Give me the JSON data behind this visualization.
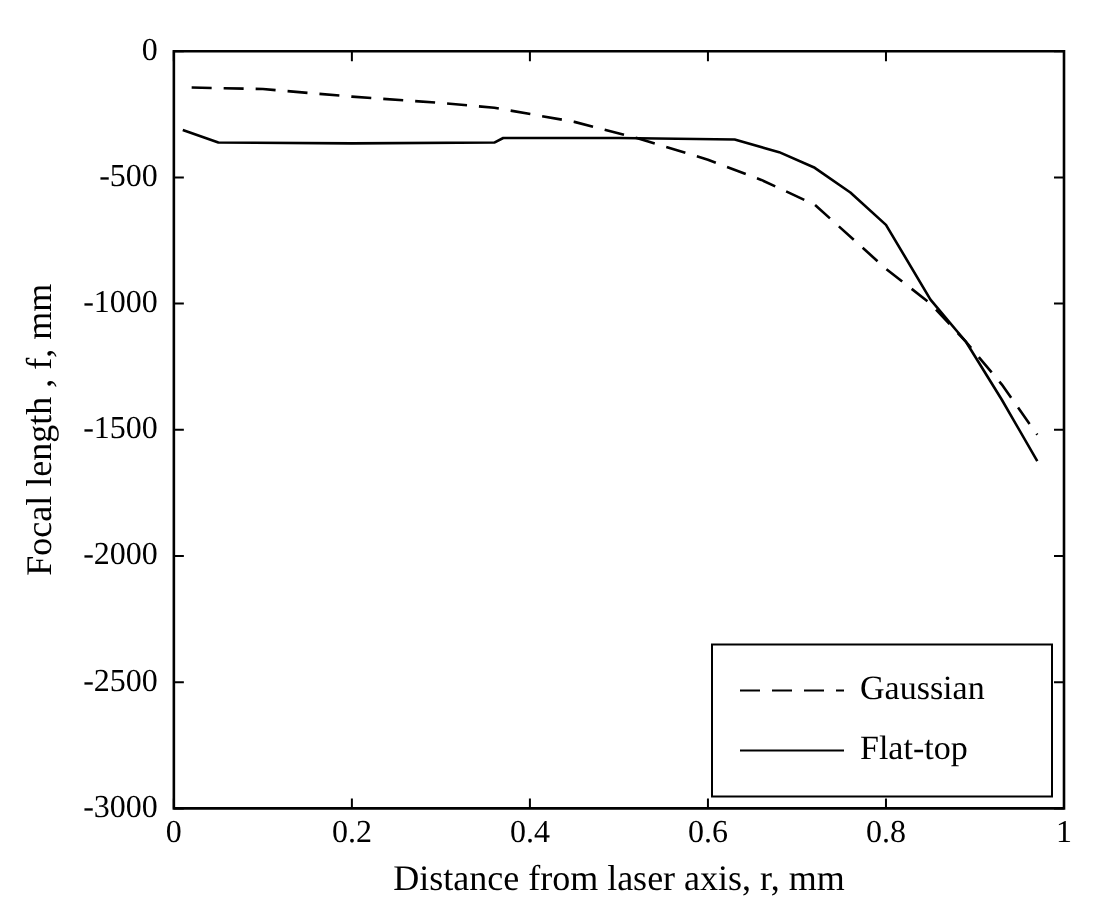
{
  "chart_data": {
    "type": "line",
    "xlabel": "Distance from laser axis, r, mm",
    "ylabel": "Focal length , f, mm",
    "xlim": [
      0,
      1
    ],
    "xticks": [
      0,
      0.2,
      0.4,
      0.6,
      0.8,
      1
    ],
    "ylim": [
      -3000,
      0
    ],
    "yticks": [
      -3000,
      -2500,
      -2000,
      -1500,
      -1000,
      -500,
      0
    ],
    "legend": "bottom right",
    "grid": false,
    "marker": "none",
    "series": [
      {
        "name": "Gaussian",
        "color": "#000000",
        "line_style": "dashed",
        "x": [
          0.02,
          0.1,
          0.2,
          0.3,
          0.36,
          0.45,
          0.52,
          0.6,
          0.66,
          0.72,
          0.8,
          0.85,
          0.89,
          0.93,
          0.97
        ],
        "values": [
          -144,
          -150,
          -180,
          -205,
          -224,
          -280,
          -344,
          -430,
          -510,
          -608,
          -862,
          -1000,
          -1152,
          -1320,
          -1520
        ]
      },
      {
        "name": "Flat-top",
        "color": "#000000",
        "line_style": "solid",
        "x": [
          0.01,
          0.05,
          0.2,
          0.36,
          0.37,
          0.5,
          0.63,
          0.68,
          0.72,
          0.76,
          0.8,
          0.85,
          0.89,
          0.93,
          0.97
        ],
        "values": [
          -312,
          -362,
          -365,
          -362,
          -344,
          -344,
          -350,
          -400,
          -462,
          -560,
          -688,
          -984,
          -1152,
          -1380,
          -1624
        ]
      }
    ]
  }
}
